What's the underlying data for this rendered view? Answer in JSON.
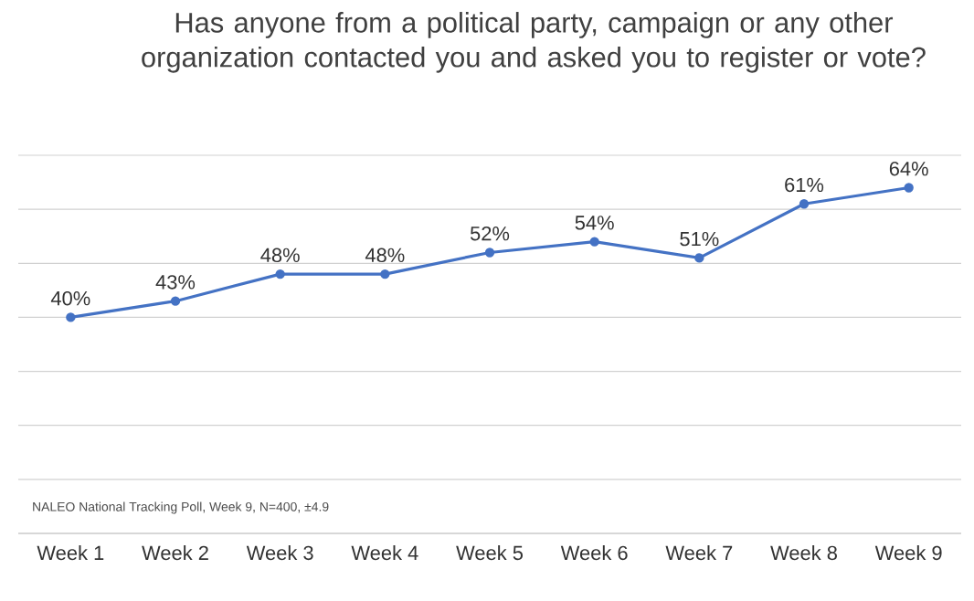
{
  "chart_data": {
    "type": "line",
    "title": "Has anyone from a political party, campaign or any other organization contacted you and asked you to register or vote?",
    "categories": [
      "Week 1",
      "Week 2",
      "Week 3",
      "Week 4",
      "Week 5",
      "Week 6",
      "Week 7",
      "Week 8",
      "Week 9"
    ],
    "series": [
      {
        "color": "#4472c4",
        "values": [
          40,
          43,
          48,
          48,
          52,
          54,
          51,
          61,
          64
        ],
        "value_labels": [
          "40%",
          "43%",
          "48%",
          "48%",
          "52%",
          "54%",
          "51%",
          "61%",
          "64%"
        ]
      }
    ],
    "ylim": [
      0,
      70
    ],
    "yticks": [
      {
        "value": 0,
        "label": null
      },
      {
        "value": 10,
        "label": null
      },
      {
        "value": 20,
        "label": null
      },
      {
        "value": 30,
        "label": null
      },
      {
        "value": 40,
        "label": null
      },
      {
        "value": 50,
        "label": null
      },
      {
        "value": 60,
        "label": null
      },
      {
        "value": 70,
        "label": null
      }
    ],
    "tick_labels": "x",
    "grid": "y",
    "marker": "circle",
    "line_style": "solid",
    "annotations": [
      "NALEO National Tracking Poll, Week 9, N=400, ±4.9"
    ]
  }
}
